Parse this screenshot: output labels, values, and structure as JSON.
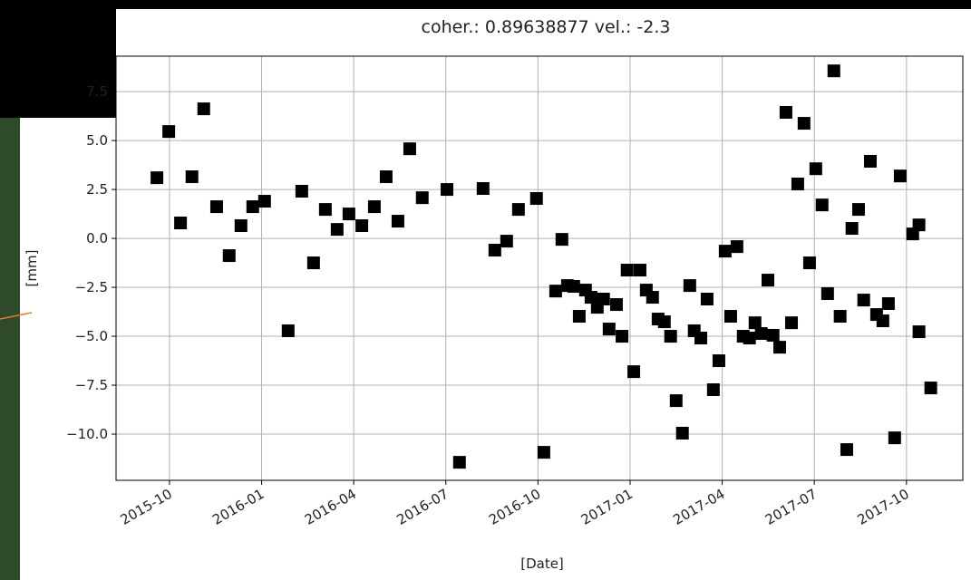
{
  "chart_data": {
    "type": "scatter",
    "title": "coher.: 0.89638877 vel.: -2.3",
    "x_label": "[Date]",
    "y_label": "[mm]",
    "color": "#000000",
    "grid": true,
    "xlim": [
      2015.605,
      2017.903
    ],
    "ylim": [
      -12.36,
      9.31
    ],
    "xticks": [
      {
        "value": 2015.75,
        "label": "2015-10"
      },
      {
        "value": 2016.0,
        "label": "2016-01"
      },
      {
        "value": 2016.25,
        "label": "2016-04"
      },
      {
        "value": 2016.5,
        "label": "2016-07"
      },
      {
        "value": 2016.75,
        "label": "2016-10"
      },
      {
        "value": 2017.0,
        "label": "2017-01"
      },
      {
        "value": 2017.25,
        "label": "2017-04"
      },
      {
        "value": 2017.5,
        "label": "2017-07"
      },
      {
        "value": 2017.75,
        "label": "2017-10"
      }
    ],
    "yticks": [
      {
        "value": 7.5,
        "label": "7.5"
      },
      {
        "value": 5.0,
        "label": "5.0"
      },
      {
        "value": 2.5,
        "label": "2.5"
      },
      {
        "value": 0.0,
        "label": "0.0"
      },
      {
        "value": -2.5,
        "label": "−2.5"
      },
      {
        "value": -5.0,
        "label": "−5.0"
      },
      {
        "value": -7.5,
        "label": "−7.5"
      },
      {
        "value": -10.0,
        "label": "−10.0"
      }
    ],
    "x": [
      2015.716,
      2015.748,
      2015.78,
      2015.811,
      2015.843,
      2015.878,
      2015.912,
      2015.944,
      2015.976,
      2016.008,
      2016.072,
      2016.109,
      2016.141,
      2016.173,
      2016.205,
      2016.237,
      2016.272,
      2016.306,
      2016.338,
      2016.37,
      2016.402,
      2016.436,
      2016.503,
      2016.537,
      2016.601,
      2016.633,
      2016.665,
      2016.697,
      2016.746,
      2016.766,
      2016.798,
      2016.815,
      2016.83,
      2016.847,
      2016.862,
      2016.879,
      2016.894,
      2016.911,
      2016.928,
      2016.943,
      2016.963,
      2016.978,
      2016.992,
      2017.01,
      2017.027,
      2017.044,
      2017.061,
      2017.076,
      2017.093,
      2017.11,
      2017.125,
      2017.142,
      2017.162,
      2017.174,
      2017.192,
      2017.209,
      2017.226,
      2017.241,
      2017.258,
      2017.273,
      2017.29,
      2017.307,
      2017.324,
      2017.339,
      2017.356,
      2017.374,
      2017.388,
      2017.406,
      2017.423,
      2017.438,
      2017.455,
      2017.472,
      2017.487,
      2017.504,
      2017.521,
      2017.536,
      2017.553,
      2017.57,
      2017.588,
      2017.602,
      2017.62,
      2017.634,
      2017.652,
      2017.669,
      2017.686,
      2017.701,
      2017.718,
      2017.733,
      2017.767,
      2017.784,
      2017.784,
      2017.816
    ],
    "values": [
      3.1,
      5.46,
      0.79,
      3.15,
      6.62,
      1.62,
      -0.88,
      0.65,
      1.62,
      1.9,
      -4.72,
      2.41,
      -1.25,
      1.48,
      0.46,
      1.25,
      0.65,
      1.62,
      3.15,
      0.88,
      4.58,
      2.08,
      2.5,
      -11.44,
      2.55,
      -0.6,
      -0.14,
      1.48,
      2.04,
      -10.93,
      -2.69,
      -0.05,
      -2.41,
      -2.45,
      -3.98,
      -2.64,
      -3.01,
      -3.52,
      -3.1,
      -4.63,
      -3.38,
      -5.0,
      -1.62,
      -6.81,
      -1.62,
      -2.64,
      -3.01,
      -4.12,
      -4.26,
      -5.0,
      -8.29,
      -9.95,
      -2.41,
      -4.72,
      -5.09,
      -3.1,
      -7.73,
      -6.25,
      -0.65,
      -3.98,
      -0.42,
      -5.0,
      -5.09,
      -4.31,
      -4.86,
      -2.13,
      -4.95,
      -5.56,
      6.44,
      -4.31,
      2.78,
      5.88,
      -1.25,
      3.56,
      1.71,
      -2.82,
      8.56,
      -3.98,
      -10.79,
      0.51,
      1.48,
      -3.15,
      3.94,
      -3.89,
      -4.21,
      -3.33,
      -10.19,
      3.19,
      0.23,
      0.69,
      -4.77,
      -7.64
    ]
  }
}
